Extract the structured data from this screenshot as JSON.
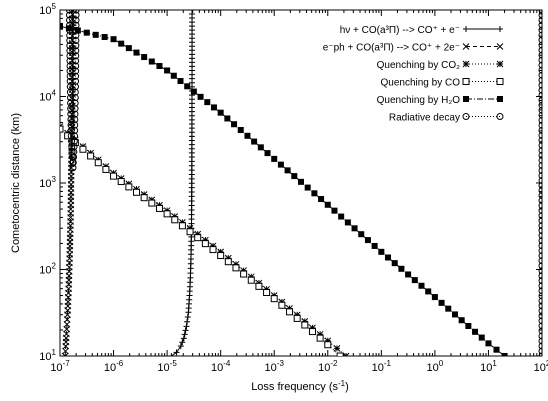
{
  "chart_data": {
    "type": "scatter",
    "xscale": "log",
    "yscale": "log",
    "xlim": [
      1e-07,
      100
    ],
    "ylim": [
      10,
      100000
    ],
    "xlabel": "Loss frequency (s",
    "xlabel_sup": "-1",
    "xlabel_end": ")",
    "ylabel": "Cometocentric distance (km)",
    "x_ticks": [
      {
        "value": 1e-07,
        "base": "10",
        "exp": "-7"
      },
      {
        "value": 1e-06,
        "base": "10",
        "exp": "-6"
      },
      {
        "value": 1e-05,
        "base": "10",
        "exp": "-5"
      },
      {
        "value": 0.0001,
        "base": "10",
        "exp": "-4"
      },
      {
        "value": 0.001,
        "base": "10",
        "exp": "-3"
      },
      {
        "value": 0.01,
        "base": "10",
        "exp": "-2"
      },
      {
        "value": 0.1,
        "base": "10",
        "exp": "-1"
      },
      {
        "value": 1,
        "base": "10",
        "exp": "0"
      },
      {
        "value": 10,
        "base": "10",
        "exp": "1"
      },
      {
        "value": 100,
        "base": "10",
        "exp": "2"
      }
    ],
    "y_ticks": [
      {
        "value": 10,
        "base": "10",
        "exp": "1"
      },
      {
        "value": 100,
        "base": "10",
        "exp": "2"
      },
      {
        "value": 1000,
        "base": "10",
        "exp": "3"
      },
      {
        "value": 10000,
        "base": "10",
        "exp": "4"
      },
      {
        "value": 100000,
        "base": "10",
        "exp": "5"
      }
    ],
    "legend_position": "top-right",
    "series": [
      {
        "name": "hν + CO(a³Π) --> CO⁺ + e⁻",
        "marker": "plus",
        "dash": "",
        "points": [
          [
            1.2e-05,
            10
          ],
          [
            1.5e-05,
            11
          ],
          [
            1.8e-05,
            13
          ],
          [
            2.05e-05,
            16
          ],
          [
            2.3e-05,
            22
          ],
          [
            2.5e-05,
            32
          ],
          [
            2.62e-05,
            50
          ],
          [
            2.72e-05,
            80
          ],
          [
            2.8e-05,
            150
          ],
          [
            2.85e-05,
            300
          ],
          [
            2.88e-05,
            700
          ],
          [
            2.9e-05,
            2000
          ],
          [
            2.91e-05,
            6000
          ],
          [
            2.92e-05,
            20000
          ],
          [
            2.92e-05,
            100000
          ]
        ]
      },
      {
        "name": "e⁻ph + CO(a³Π) --> CO⁺ + 2e⁻",
        "marker": "cross",
        "dash": "4,3",
        "points": [
          [
            1.25e-07,
            10
          ],
          [
            1.28e-07,
            13
          ],
          [
            1.32e-07,
            18
          ],
          [
            1.38e-07,
            30
          ],
          [
            1.45e-07,
            60
          ],
          [
            1.52e-07,
            150
          ],
          [
            1.58e-07,
            400
          ],
          [
            1.62e-07,
            1200
          ],
          [
            1.66e-07,
            4000
          ],
          [
            1.69e-07,
            15000
          ],
          [
            1.7e-07,
            50000
          ],
          [
            1.71e-07,
            100000
          ]
        ]
      },
      {
        "name": "Quenching by CO₂",
        "marker": "star",
        "dash": "1,2",
        "points": [
          [
            1e-07,
            4500
          ],
          [
            1e-06,
            1300
          ],
          [
            1e-05,
            480
          ],
          [
            0.0001,
            160
          ],
          [
            0.001,
            50
          ],
          [
            0.01,
            15
          ],
          [
            0.022,
            10
          ]
        ]
      },
      {
        "name": "Quenching by CO",
        "marker": "square-open",
        "dash": "1,2",
        "points": [
          [
            1e-07,
            4200
          ],
          [
            1e-06,
            1200
          ],
          [
            1e-05,
            440
          ],
          [
            0.0001,
            145
          ],
          [
            0.001,
            46
          ],
          [
            0.01,
            13.5
          ],
          [
            0.017,
            10
          ]
        ]
      },
      {
        "name": "Quenching by H₂O",
        "marker": "square-filled",
        "dash": "6,2,1,2",
        "points": [
          [
            1e-07,
            65000
          ],
          [
            1e-06,
            46000
          ],
          [
            1e-05,
            20000
          ],
          [
            0.0001,
            6500
          ],
          [
            0.001,
            1900
          ],
          [
            0.01,
            560
          ],
          [
            0.1,
            160
          ],
          [
            1,
            48
          ],
          [
            10,
            14
          ],
          [
            20,
            10
          ]
        ]
      },
      {
        "name": "Radiative decay",
        "marker": "circle-open",
        "dash": "1,2",
        "points": [
          [
            1.5e-07,
            100000
          ],
          [
            1.55e-07,
            15000
          ],
          [
            1.62e-07,
            3500
          ],
          [
            1.75e-07,
            1500
          ],
          [
            1.87e-07,
            3500
          ],
          [
            1.95e-07,
            15000
          ],
          [
            2e-07,
            100000
          ],
          [
            100,
            10
          ],
          [
            100,
            100000
          ]
        ]
      }
    ]
  }
}
